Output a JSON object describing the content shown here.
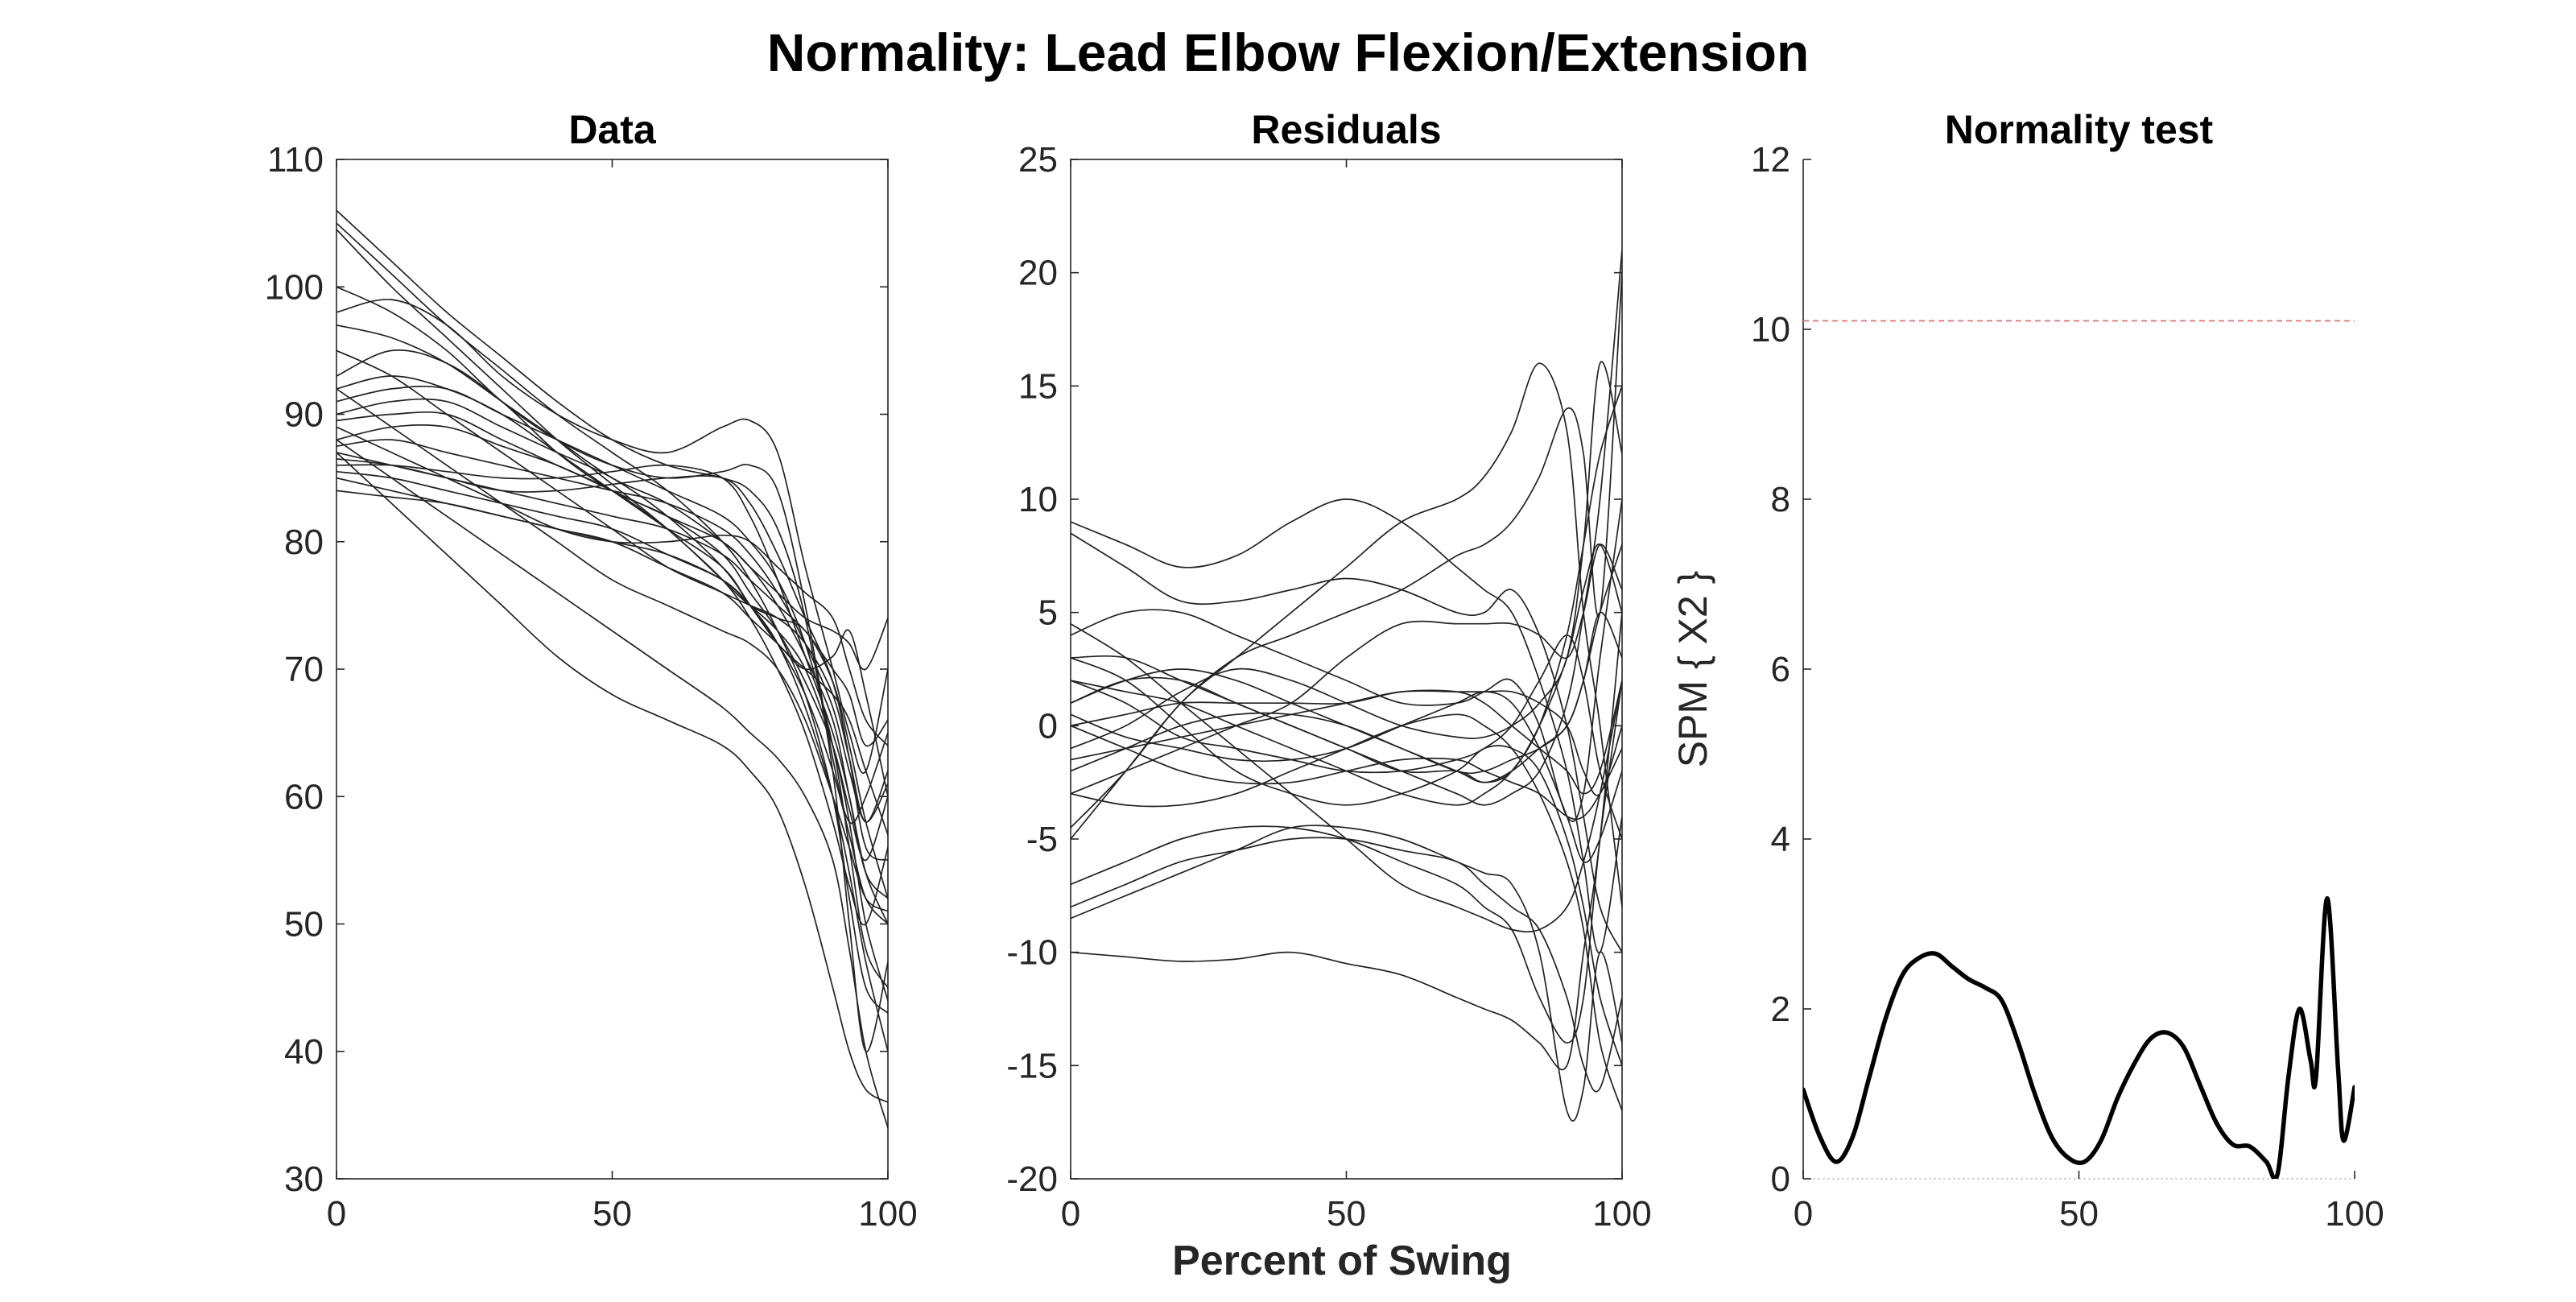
{
  "figure": {
    "title": "Normality: Lead Elbow Flexion/Extension",
    "xlabel": "Percent of Swing"
  },
  "chart_data": [
    {
      "id": "data",
      "type": "line",
      "title": "Data",
      "xlabel": "",
      "ylabel": "",
      "xlim": [
        0,
        100
      ],
      "ylim": [
        30,
        110
      ],
      "xticks": [
        0,
        50,
        100
      ],
      "yticks": [
        30,
        40,
        50,
        60,
        70,
        80,
        90,
        100,
        110
      ],
      "line_color": "#222222",
      "x": [
        0,
        10,
        20,
        30,
        40,
        50,
        60,
        70,
        75,
        80,
        85,
        90,
        93,
        96,
        100
      ],
      "series": [
        {
          "values": [
            106,
            102,
            98,
            94.5,
            91,
            88,
            86,
            85,
            84,
            81,
            74,
            62,
            50,
            40,
            47
          ]
        },
        {
          "values": [
            105,
            101,
            97,
            93.5,
            90,
            87,
            84,
            80,
            77,
            73,
            68,
            60,
            52,
            45,
            43
          ]
        },
        {
          "values": [
            104.5,
            100,
            96,
            92,
            88,
            84.5,
            81,
            77,
            74,
            70,
            65,
            58,
            53,
            50,
            56
          ]
        },
        {
          "values": [
            100,
            98,
            95,
            91,
            88,
            86,
            85,
            85.5,
            86,
            84,
            75,
            63,
            58,
            60,
            65
          ]
        },
        {
          "values": [
            98,
            99,
            97,
            93,
            90,
            88,
            87,
            89,
            89.5,
            87,
            78,
            70,
            65,
            62,
            70
          ]
        },
        {
          "values": [
            97,
            96,
            94,
            91,
            88,
            85,
            83,
            80,
            78,
            75,
            71,
            66,
            60,
            54,
            52
          ]
        },
        {
          "values": [
            93,
            95,
            94,
            91,
            87,
            84,
            82,
            79,
            76,
            73,
            69,
            64,
            59,
            55,
            60
          ]
        },
        {
          "values": [
            92,
            93,
            92,
            90,
            87,
            84,
            81,
            78,
            75,
            72,
            68,
            62,
            57,
            52,
            50
          ]
        },
        {
          "values": [
            91,
            92,
            92,
            90,
            88,
            86,
            84,
            82,
            80,
            77,
            72,
            64,
            56,
            48,
            45
          ]
        },
        {
          "values": [
            90,
            91,
            91,
            89,
            87,
            85,
            82,
            78,
            75,
            72,
            70,
            68,
            66,
            62,
            57
          ]
        },
        {
          "values": [
            89.5,
            90,
            90,
            88,
            86,
            84,
            81,
            77,
            75,
            74,
            73,
            69,
            64,
            58,
            52
          ]
        },
        {
          "values": [
            88,
            89,
            89,
            87.5,
            86,
            84,
            82,
            80,
            78,
            76,
            74,
            73,
            72,
            70,
            74
          ]
        },
        {
          "values": [
            87.5,
            88,
            87,
            86,
            85,
            84,
            83,
            81,
            79,
            76,
            72,
            67,
            62,
            58,
            61
          ]
        },
        {
          "values": [
            87,
            86,
            85,
            84,
            83,
            82,
            81,
            79,
            77,
            75,
            73,
            70,
            68,
            64,
            66
          ]
        },
        {
          "values": [
            86.5,
            86,
            85,
            84,
            84,
            84.5,
            85,
            85,
            83,
            79,
            74,
            69,
            63,
            56,
            55
          ]
        },
        {
          "values": [
            86,
            86,
            85.5,
            85,
            85,
            85.5,
            86,
            85,
            82,
            77,
            71,
            65,
            60,
            54,
            50
          ]
        },
        {
          "values": [
            85.5,
            85,
            84,
            83,
            82,
            81,
            79,
            77,
            75,
            73,
            70,
            64,
            58,
            50,
            44
          ]
        },
        {
          "values": [
            85,
            84,
            83,
            82,
            81,
            80,
            79,
            77,
            75,
            72,
            67,
            60,
            54,
            47,
            40
          ]
        },
        {
          "values": [
            84,
            83.5,
            83,
            82,
            81,
            80,
            78,
            76,
            74,
            72,
            70,
            71,
            73,
            68,
            60
          ]
        },
        {
          "values": [
            87,
            83,
            79,
            75,
            71,
            68,
            66,
            64,
            62,
            59,
            53,
            45,
            40,
            37,
            36
          ]
        },
        {
          "values": [
            88,
            85,
            82,
            79,
            76,
            73,
            70,
            67,
            65,
            63,
            60,
            55,
            48,
            40,
            34
          ]
        },
        {
          "values": [
            92,
            89,
            86,
            83,
            80,
            77,
            75,
            73,
            72,
            70,
            66,
            60,
            56,
            52,
            51
          ]
        },
        {
          "values": [
            95,
            93,
            90,
            87,
            84,
            81,
            78,
            76,
            75,
            74,
            72,
            68,
            63,
            58,
            62
          ]
        },
        {
          "values": [
            89,
            87,
            85,
            83,
            81,
            80,
            80,
            80.5,
            80,
            78,
            76,
            74,
            70,
            66,
            64
          ]
        }
      ]
    },
    {
      "id": "residuals",
      "type": "line",
      "title": "Residuals",
      "xlabel": "",
      "ylabel": "",
      "xlim": [
        0,
        100
      ],
      "ylim": [
        -20,
        25
      ],
      "xticks": [
        0,
        50,
        100
      ],
      "yticks": [
        -20,
        -15,
        -10,
        -5,
        0,
        5,
        10,
        15,
        20,
        25
      ],
      "line_color": "#222222",
      "x": [
        0,
        10,
        20,
        30,
        40,
        50,
        60,
        70,
        75,
        80,
        85,
        90,
        93,
        96,
        100
      ],
      "series": [
        {
          "values": [
            9,
            8,
            7,
            7.5,
            9,
            10,
            9,
            7,
            6,
            5,
            2,
            -2,
            -6,
            -10,
            -4
          ]
        },
        {
          "values": [
            8.5,
            7,
            5.5,
            5.5,
            6,
            6.5,
            6,
            5,
            5,
            6,
            4,
            0,
            -4,
            -8,
            -10
          ]
        },
        {
          "values": [
            4,
            5,
            5,
            4,
            3,
            2,
            1,
            1,
            1.5,
            2,
            0,
            -4,
            -3,
            3,
            10
          ]
        },
        {
          "values": [
            -5,
            -2,
            1,
            3,
            5,
            7,
            9,
            10,
            11,
            13,
            16,
            13,
            5,
            0,
            -8
          ]
        },
        {
          "values": [
            -4.5,
            -2,
            1,
            3,
            4,
            5,
            6,
            7.5,
            8,
            9,
            11,
            14,
            12,
            5,
            20
          ]
        },
        {
          "values": [
            -10,
            -10.2,
            -10.4,
            -10.3,
            -10,
            -10.5,
            -11,
            -12,
            -12.5,
            -13,
            -14,
            -15,
            -10,
            -5,
            5
          ]
        },
        {
          "values": [
            -8.5,
            -7.5,
            -6.5,
            -5.5,
            -4.5,
            -4.5,
            -5,
            -6,
            -6.5,
            -7,
            -10,
            -17,
            -16,
            -10,
            -14
          ]
        },
        {
          "values": [
            -7,
            -6,
            -5,
            -4.5,
            -4.5,
            -5,
            -6,
            -7,
            -8,
            -9,
            -12,
            -14,
            -12,
            -5,
            2
          ]
        },
        {
          "values": [
            -8,
            -7,
            -6,
            -5.5,
            -5,
            -5,
            -5.5,
            -6,
            -7,
            -8,
            -9,
            -12,
            -15,
            -16,
            -12
          ]
        },
        {
          "values": [
            3,
            3,
            2,
            1,
            0,
            -1,
            -2,
            -3,
            -3.5,
            -3,
            -2,
            1,
            5,
            10,
            21
          ]
        },
        {
          "values": [
            1,
            2,
            2,
            1,
            0,
            -1,
            -2,
            -2,
            -2.5,
            -2,
            0,
            3,
            6,
            8,
            5
          ]
        },
        {
          "values": [
            0.5,
            -0.5,
            -1,
            -1.5,
            -1.5,
            -1,
            0,
            1,
            1.5,
            1,
            -1,
            -4,
            -6,
            -5,
            -2
          ]
        },
        {
          "values": [
            0,
            0.5,
            1,
            1,
            1,
            1,
            1.5,
            1.5,
            1.5,
            1.5,
            1,
            0,
            -2,
            -3,
            0
          ]
        },
        {
          "values": [
            -1.5,
            -1,
            -0.5,
            0,
            0.5,
            1,
            1.5,
            1.5,
            1,
            0,
            -1,
            -2,
            -3,
            -2,
            2
          ]
        },
        {
          "values": [
            -2,
            -1,
            0,
            0.5,
            0.5,
            0,
            -1,
            -2,
            -2.5,
            -2,
            -1,
            0,
            2,
            5,
            8
          ]
        },
        {
          "values": [
            2,
            1.5,
            1,
            0,
            -1,
            -2,
            -3,
            -3.5,
            -3,
            -2,
            0,
            4,
            8,
            12,
            15
          ]
        },
        {
          "values": [
            3,
            2,
            0,
            -2,
            -3,
            -3.5,
            -3,
            -2,
            -1,
            -1,
            -2,
            -5,
            -8,
            -12,
            -15
          ]
        },
        {
          "values": [
            -3,
            -3.5,
            -3.5,
            -3,
            -2,
            -1,
            0,
            0.5,
            0,
            -1,
            -3,
            -6,
            -9,
            -14,
            -17
          ]
        },
        {
          "values": [
            1,
            2,
            2.5,
            2,
            1,
            0,
            -1,
            -2,
            -2,
            -1.5,
            -1,
            0,
            2,
            5,
            3
          ]
        },
        {
          "values": [
            0,
            -1,
            -2,
            -2.5,
            -2.5,
            -2,
            -1.5,
            -1.5,
            -2,
            -2.5,
            -3,
            -4,
            -4,
            -3,
            -1
          ]
        },
        {
          "values": [
            4.5,
            3,
            1,
            -1,
            -3,
            -5,
            -7,
            -8,
            -8.5,
            -9,
            -9,
            -8,
            -6,
            -3,
            2
          ]
        },
        {
          "values": [
            -1,
            0,
            1.5,
            2.5,
            2,
            1,
            0,
            -0.5,
            -0.5,
            0,
            1,
            3,
            8,
            16,
            12
          ]
        },
        {
          "values": [
            2,
            1,
            -0.5,
            -1,
            -1.5,
            -2,
            -2,
            -1.5,
            -1,
            0,
            2,
            4,
            2,
            -2,
            -5
          ]
        },
        {
          "values": [
            -3,
            -2,
            -1,
            0,
            1,
            3,
            4.5,
            4.5,
            4.5,
            4.5,
            4,
            3,
            5,
            8,
            6
          ]
        }
      ]
    },
    {
      "id": "normality",
      "type": "line",
      "title": "Normality test",
      "xlabel": "",
      "ylabel": "SPM { X2 }",
      "xlim": [
        0,
        100
      ],
      "ylim": [
        0,
        12
      ],
      "xticks": [
        0,
        50,
        100
      ],
      "yticks": [
        0,
        2,
        4,
        6,
        8,
        10,
        12
      ],
      "line_color": "#000000",
      "threshold": 10.1,
      "threshold_color": "#e08080",
      "x": [
        0,
        3,
        6,
        9,
        12,
        15,
        18,
        21,
        24,
        27,
        30,
        33,
        36,
        39,
        42,
        45,
        48,
        51,
        54,
        57,
        60,
        63,
        66,
        69,
        72,
        75,
        78,
        81,
        84,
        86,
        88,
        90,
        92,
        93,
        95,
        97,
        98,
        100
      ],
      "series": [
        {
          "name": "",
          "values": [
            1.05,
            0.5,
            0.2,
            0.5,
            1.2,
            1.9,
            2.4,
            2.6,
            2.65,
            2.5,
            2.35,
            2.25,
            2.1,
            1.6,
            1.0,
            0.5,
            0.25,
            0.2,
            0.45,
            0.95,
            1.35,
            1.65,
            1.72,
            1.55,
            1.1,
            0.65,
            0.4,
            0.38,
            0.2,
            0.05,
            1.2,
            2.0,
            1.4,
            1.2,
            3.3,
            1.3,
            0.45,
            1.08
          ]
        }
      ]
    }
  ]
}
